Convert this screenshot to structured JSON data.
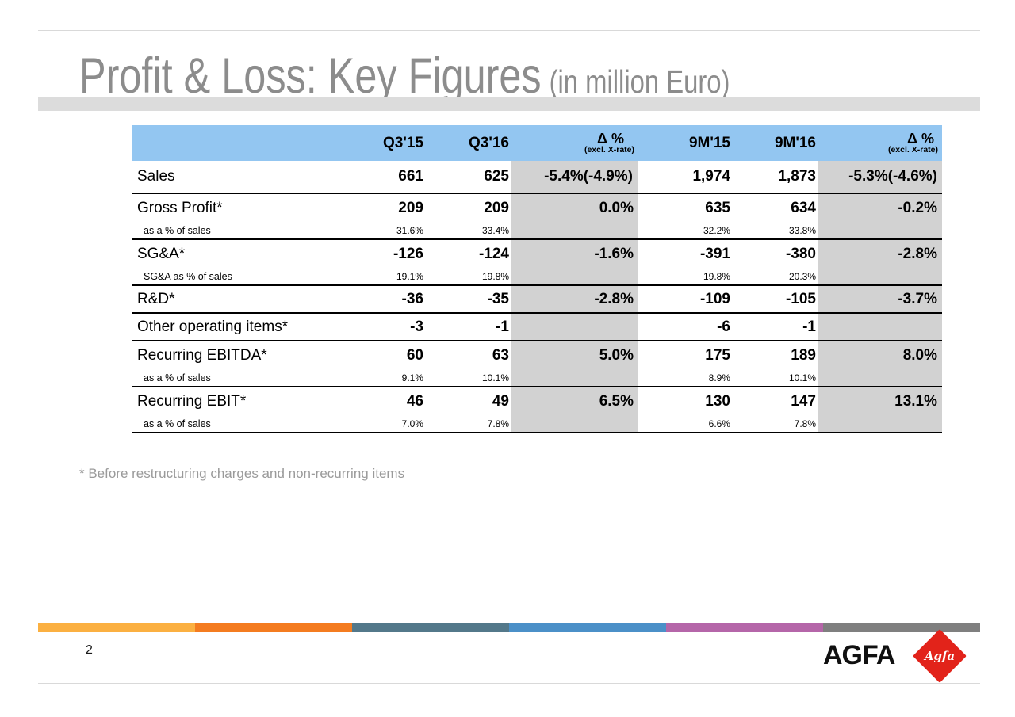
{
  "slide": {
    "title": "Profit & Loss: Key Figures",
    "title_suffix": "(in million Euro)",
    "footnote": "* Before restructuring charges and non-recurring items",
    "page_number": "2",
    "logo": {
      "wordmark": "AGFA",
      "emblem_text": "Agfa"
    }
  },
  "table": {
    "column_keys": [
      "q3-15",
      "q3-16",
      "delta-q3",
      "9m-15",
      "9m-16",
      "delta-9m"
    ],
    "header": {
      "q3_15": "Q3'15",
      "q3_16": "Q3'16",
      "delta_label": "Δ %",
      "delta_sub": "(excl. X-rate)",
      "m9_15": "9M'15",
      "m9_16": "9M'16"
    },
    "rows": [
      {
        "label": "Sales",
        "type": "main",
        "first": true,
        "divider_after": true,
        "divider_right": true,
        "values": [
          "661",
          "625",
          "-5.4%(-4.9%)",
          "1,974",
          "1,873",
          "-5.3%(-4.6%)"
        ]
      },
      {
        "label": "Gross Profit*",
        "type": "main",
        "divider_after": false,
        "values": [
          "209",
          "209",
          "0.0%",
          "635",
          "634",
          "-0.2%"
        ]
      },
      {
        "label": "as a % of sales",
        "type": "sub",
        "divider_after": true,
        "values": [
          "31.6%",
          "33.4%",
          "",
          "32.2%",
          "33.8%",
          ""
        ]
      },
      {
        "label": "SG&A*",
        "type": "main",
        "divider_after": false,
        "values": [
          "-126",
          "-124",
          "-1.6%",
          "-391",
          "-380",
          "-2.8%"
        ]
      },
      {
        "label": "SG&A as % of sales",
        "type": "sub",
        "divider_after": true,
        "values": [
          "19.1%",
          "19.8%",
          "",
          "19.8%",
          "20.3%",
          ""
        ]
      },
      {
        "label": "R&D*",
        "type": "main",
        "divider_after": true,
        "values": [
          "-36",
          "-35",
          "-2.8%",
          "-109",
          "-105",
          "-3.7%"
        ]
      },
      {
        "label": "Other operating items*",
        "type": "main",
        "divider_after": true,
        "values": [
          "-3",
          "-1",
          "",
          "-6",
          "-1",
          ""
        ]
      },
      {
        "label": "Recurring EBITDA*",
        "type": "main",
        "divider_after": false,
        "values": [
          "60",
          "63",
          "5.0%",
          "175",
          "189",
          "8.0%"
        ]
      },
      {
        "label": "as a % of sales",
        "type": "sub",
        "divider_after": true,
        "values": [
          "9.1%",
          "10.1%",
          "",
          "8.9%",
          "10.1%",
          ""
        ]
      },
      {
        "label": "Recurring EBIT*",
        "type": "main",
        "divider_after": false,
        "values": [
          "46",
          "49",
          "6.5%",
          "130",
          "147",
          "13.1%"
        ]
      },
      {
        "label": "as a % of sales",
        "type": "sub",
        "divider_after": true,
        "values": [
          "7.0%",
          "7.8%",
          "",
          "6.6%",
          "7.8%",
          ""
        ]
      }
    ]
  },
  "colors": {
    "header_blue": "#93C6F1",
    "delta_gray": "#D2D2D2",
    "title_gray": "#8C8C8C",
    "bar_gray": "#DCDCDC",
    "rule_gray": "#D9D9D9",
    "footnote_gray": "#9A9A9A",
    "agfa_red": "#E2231A",
    "stripe": [
      "#FBB041",
      "#F47C20",
      "#53788A",
      "#4B90C8",
      "#B566A9",
      "#7F7F7F"
    ]
  }
}
